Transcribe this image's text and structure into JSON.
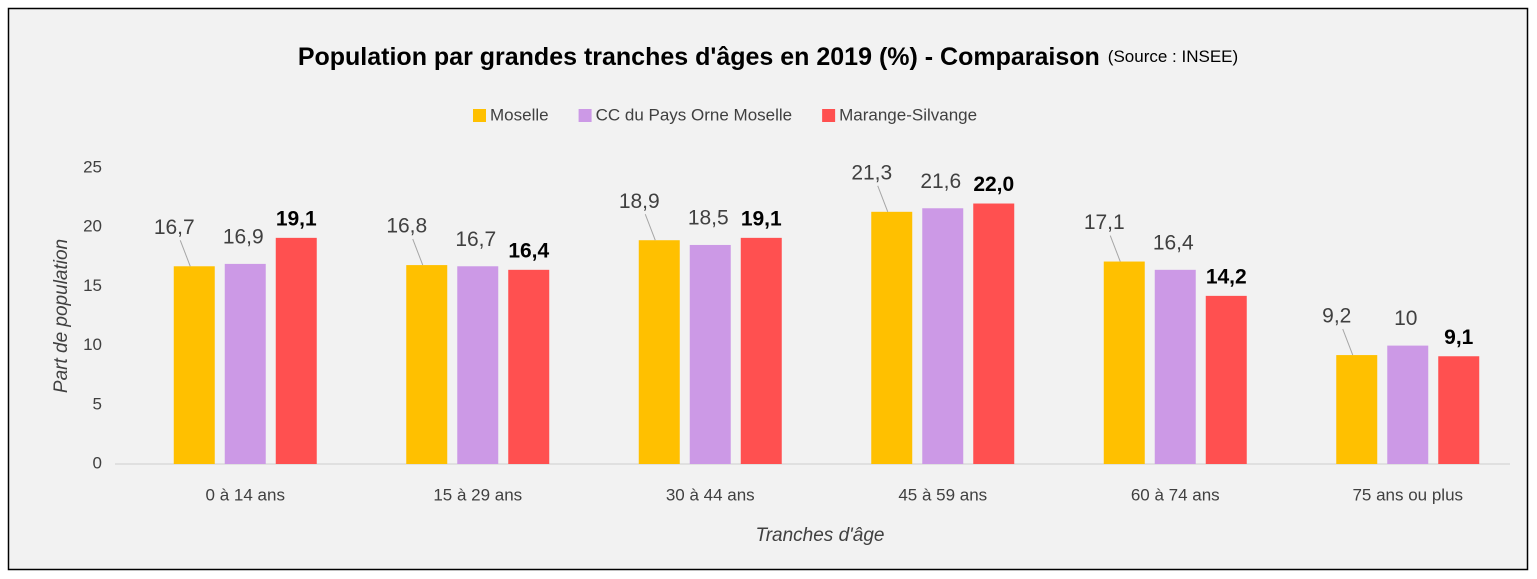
{
  "chart_data": {
    "type": "bar",
    "title": "Population par grandes tranches d'âges en 2019 (%) - Comparaison",
    "subtitle": "(Source : INSEE)",
    "y_label": "Part de population",
    "x_label": "Tranches d'âge",
    "categories": [
      "0 à 14 ans",
      "15 à 29 ans",
      "30 à 44 ans",
      "45 à 59 ans",
      "60 à 74 ans",
      "75 ans ou plus"
    ],
    "series": [
      {
        "name": "Moselle",
        "color": "#ffc000",
        "values": [
          16.7,
          16.8,
          18.9,
          21.3,
          17.1,
          9.2
        ],
        "value_labels": [
          "16,7",
          "16,8",
          "18,9",
          "21,3",
          "17,1",
          "9,2"
        ]
      },
      {
        "name": "CC du Pays Orne Moselle",
        "color": "#cc99e6",
        "values": [
          16.9,
          16.7,
          18.5,
          21.6,
          16.4,
          10
        ],
        "value_labels": [
          "16,9",
          "16,7",
          "18,5",
          "21,6",
          "16,4",
          "10"
        ]
      },
      {
        "name": "Marange-Silvange",
        "color": "#ff5050",
        "values": [
          19.1,
          16.4,
          19.1,
          22.0,
          14.2,
          9.1
        ],
        "value_labels": [
          "19,1",
          "16,4",
          "19,1",
          "22,0",
          "14,2",
          "9,1"
        ]
      }
    ],
    "ylim": [
      0,
      25
    ],
    "yticks": [
      0,
      5,
      10,
      15,
      20,
      25
    ],
    "grid": false,
    "legend": "top"
  }
}
